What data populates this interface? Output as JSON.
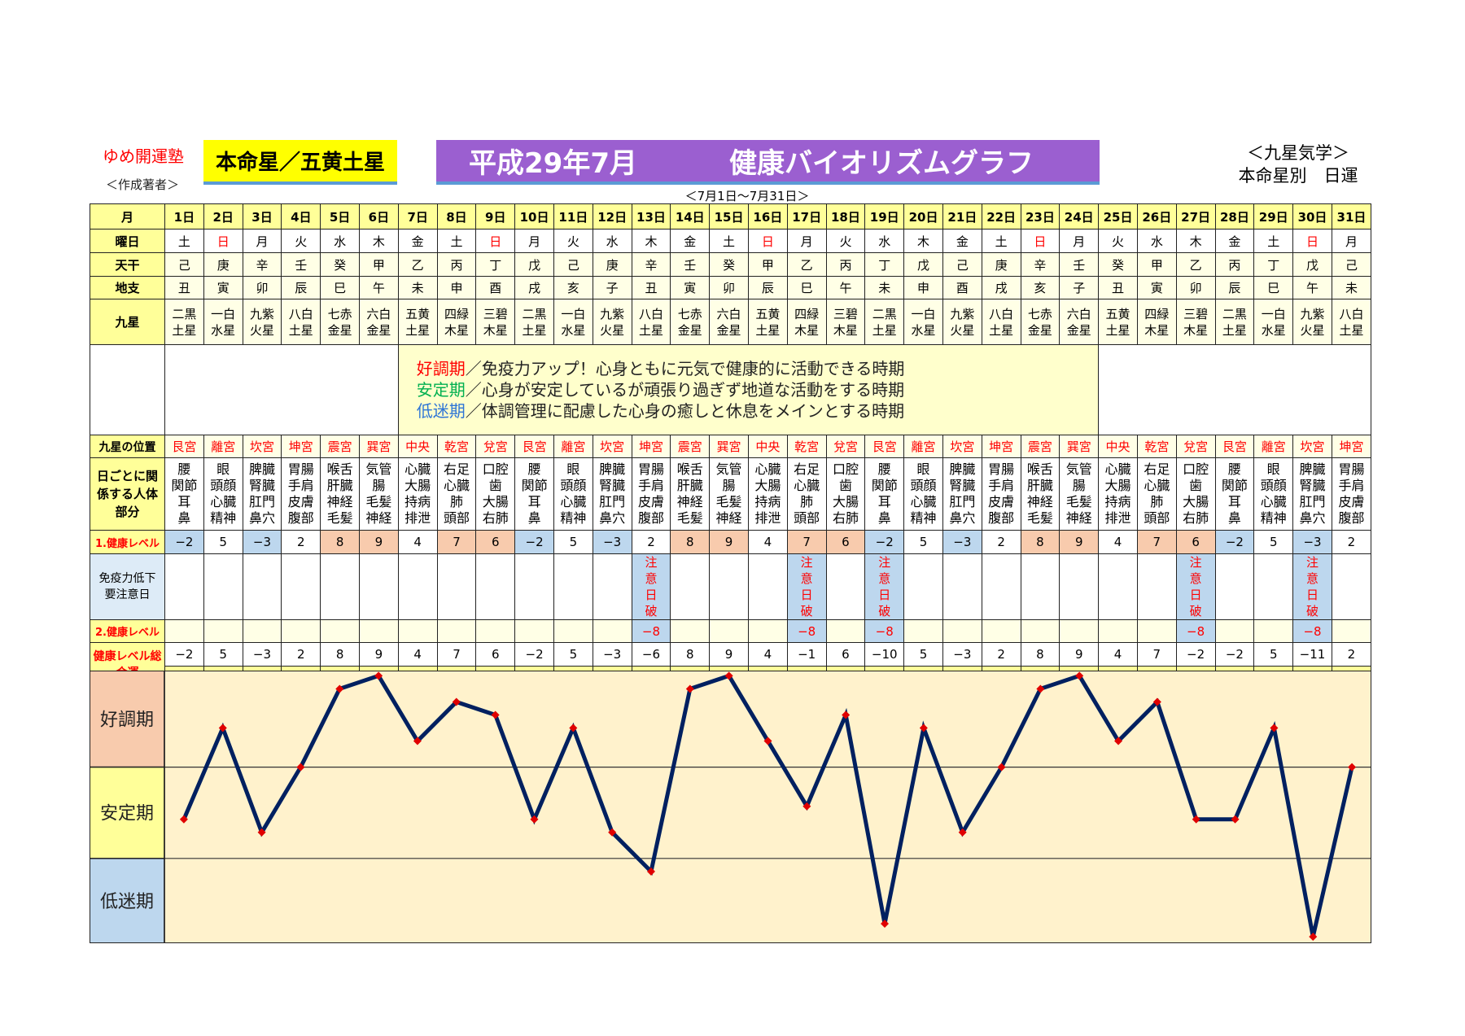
{
  "header": {
    "org": "ゆめ開運塾",
    "author": "＜作成著者＞",
    "honmei": "本命星／五黄土星",
    "title_month": "平成29年7月",
    "title_main": "健康バイオリズムグラフ",
    "right_line1": "＜九星気学＞",
    "right_line2": "本命星別　日運",
    "range": "＜7月1日～7月31日＞"
  },
  "colors": {
    "good": "#f8cbad",
    "stable": "#ffff99",
    "low": "#bdd7ee",
    "line": "#002060",
    "marker": "#e00000",
    "chart_bg": "#fff2cc",
    "title_bg": "#9b5fd0",
    "honmei_bg": "#ffff00"
  },
  "labels": {
    "month": "月",
    "weekday": "曜日",
    "tenkan": "天干",
    "chishi": "地支",
    "kyusei": "九星",
    "position": "九星の位置",
    "body": "日ごとに関係する人体部分",
    "level1": "1.健康レベル",
    "notice": "免疫力低下要注意日",
    "level2": "2.健康レベル",
    "total": "健康レベル総合運"
  },
  "legend": [
    {
      "term": "好調期",
      "color": "#ff0000",
      "text": "／免疫力アップ！心身ともに元気で健康的に活動できる時期"
    },
    {
      "term": "安定期",
      "color": "#00b050",
      "text": "／心身が安定しているが頑張り過ぎず地道な活動をする時期"
    },
    {
      "term": "低迷期",
      "color": "#2e75d6",
      "text": "／体調管理に配慮した心身の癒しと休息をメインとする時期"
    }
  ],
  "days": [
    "1日",
    "2日",
    "3日",
    "4日",
    "5日",
    "6日",
    "7日",
    "8日",
    "9日",
    "10日",
    "11日",
    "12日",
    "13日",
    "14日",
    "15日",
    "16日",
    "17日",
    "18日",
    "19日",
    "20日",
    "21日",
    "22日",
    "23日",
    "24日",
    "25日",
    "26日",
    "27日",
    "28日",
    "29日",
    "30日",
    "31日"
  ],
  "weekdays": [
    "土",
    "日",
    "月",
    "火",
    "水",
    "木",
    "金",
    "土",
    "日",
    "月",
    "火",
    "水",
    "木",
    "金",
    "土",
    "日",
    "月",
    "火",
    "水",
    "木",
    "金",
    "土",
    "日",
    "月",
    "火",
    "水",
    "木",
    "金",
    "土",
    "日",
    "月"
  ],
  "tenkan": [
    "己",
    "庚",
    "辛",
    "壬",
    "癸",
    "甲",
    "乙",
    "丙",
    "丁",
    "戊",
    "己",
    "庚",
    "辛",
    "壬",
    "癸",
    "甲",
    "乙",
    "丙",
    "丁",
    "戊",
    "己",
    "庚",
    "辛",
    "壬",
    "癸",
    "甲",
    "乙",
    "丙",
    "丁",
    "戊",
    "己"
  ],
  "chishi": [
    "丑",
    "寅",
    "卯",
    "辰",
    "巳",
    "午",
    "未",
    "申",
    "酉",
    "戌",
    "亥",
    "子",
    "丑",
    "寅",
    "卯",
    "辰",
    "巳",
    "午",
    "未",
    "申",
    "酉",
    "戌",
    "亥",
    "子",
    "丑",
    "寅",
    "卯",
    "辰",
    "巳",
    "午",
    "未"
  ],
  "kyusei": [
    "二黒土星",
    "一白水星",
    "九紫火星",
    "八白土星",
    "七赤金星",
    "六白金星",
    "五黄土星",
    "四緑木星",
    "三碧木星",
    "二黒土星",
    "一白水星",
    "九紫火星",
    "八白土星",
    "七赤金星",
    "六白金星",
    "五黄土星",
    "四緑木星",
    "三碧木星",
    "二黒土星",
    "一白水星",
    "九紫火星",
    "八白土星",
    "七赤金星",
    "六白金星",
    "五黄土星",
    "四緑木星",
    "三碧木星",
    "二黒土星",
    "一白水星",
    "九紫火星",
    "八白土星"
  ],
  "positions": [
    "艮宮",
    "離宮",
    "坎宮",
    "坤宮",
    "震宮",
    "巽宮",
    "中央",
    "乾宮",
    "兌宮",
    "艮宮",
    "離宮",
    "坎宮",
    "坤宮",
    "震宮",
    "巽宮",
    "中央",
    "乾宮",
    "兌宮",
    "艮宮",
    "離宮",
    "坎宮",
    "坤宮",
    "震宮",
    "巽宮",
    "中央",
    "乾宮",
    "兌宮",
    "艮宮",
    "離宮",
    "坎宮",
    "坤宮"
  ],
  "body_parts": [
    [
      "腰",
      "関節",
      "耳",
      "鼻"
    ],
    [
      "眼",
      "頭顔",
      "心臓",
      "精神"
    ],
    [
      "脾臓",
      "腎臓",
      "肛門",
      "鼻穴"
    ],
    [
      "胃腸",
      "手肩",
      "皮膚",
      "腹部"
    ],
    [
      "喉舌",
      "肝臓",
      "神経",
      "毛髪"
    ],
    [
      "気管",
      "腸",
      "毛髪",
      "神経"
    ],
    [
      "心臓",
      "大腸",
      "持病",
      "排泄"
    ],
    [
      "右足",
      "心臓",
      "肺",
      "頭部"
    ],
    [
      "口腔",
      "歯",
      "大腸",
      "右肺"
    ],
    [
      "腰",
      "関節",
      "耳",
      "鼻"
    ],
    [
      "眼",
      "頭顔",
      "心臓",
      "精神"
    ],
    [
      "脾臓",
      "腎臓",
      "肛門",
      "鼻穴"
    ],
    [
      "胃腸",
      "手肩",
      "皮膚",
      "腹部"
    ],
    [
      "喉舌",
      "肝臓",
      "神経",
      "毛髪"
    ],
    [
      "気管",
      "腸",
      "毛髪",
      "神経"
    ],
    [
      "心臓",
      "大腸",
      "持病",
      "排泄"
    ],
    [
      "右足",
      "心臓",
      "肺",
      "頭部"
    ],
    [
      "口腔",
      "歯",
      "大腸",
      "右肺"
    ],
    [
      "腰",
      "関節",
      "耳",
      "鼻"
    ],
    [
      "眼",
      "頭顔",
      "心臓",
      "精神"
    ],
    [
      "脾臓",
      "腎臓",
      "肛門",
      "鼻穴"
    ],
    [
      "胃腸",
      "手肩",
      "皮膚",
      "腹部"
    ],
    [
      "喉舌",
      "肝臓",
      "神経",
      "毛髪"
    ],
    [
      "気管",
      "腸",
      "毛髪",
      "神経"
    ],
    [
      "心臓",
      "大腸",
      "持病",
      "排泄"
    ],
    [
      "右足",
      "心臓",
      "肺",
      "頭部"
    ],
    [
      "口腔",
      "歯",
      "大腸",
      "右肺"
    ],
    [
      "腰",
      "関節",
      "耳",
      "鼻"
    ],
    [
      "眼",
      "頭顔",
      "心臓",
      "精神"
    ],
    [
      "脾臓",
      "腎臓",
      "肛門",
      "鼻穴"
    ],
    [
      "胃腸",
      "手肩",
      "皮膚",
      "腹部"
    ]
  ],
  "level1": [
    -2,
    5,
    -3,
    2,
    8,
    9,
    4,
    7,
    6,
    -2,
    5,
    -3,
    2,
    8,
    9,
    4,
    7,
    6,
    -2,
    5,
    -3,
    2,
    8,
    9,
    4,
    7,
    6,
    -2,
    5,
    -3,
    2
  ],
  "notice": [
    "",
    "",
    "",
    "",
    "",
    "",
    "",
    "",
    "",
    "",
    "",
    "",
    "注意日破",
    "",
    "",
    "",
    "注意日破",
    "",
    "注意日破",
    "",
    "",
    "",
    "",
    "",
    "",
    "",
    "注意日破",
    "",
    "",
    "注意日破",
    ""
  ],
  "level2": [
    null,
    null,
    null,
    null,
    null,
    null,
    null,
    null,
    null,
    null,
    null,
    null,
    -8,
    null,
    null,
    null,
    -8,
    null,
    -8,
    null,
    null,
    null,
    null,
    null,
    null,
    null,
    -8,
    null,
    null,
    -8,
    null
  ],
  "chart_data": {
    "type": "line",
    "title": "健康バイオリズムグラフ",
    "categories": [
      "1日",
      "2日",
      "3日",
      "4日",
      "5日",
      "6日",
      "7日",
      "8日",
      "9日",
      "10日",
      "11日",
      "12日",
      "13日",
      "14日",
      "15日",
      "16日",
      "17日",
      "18日",
      "19日",
      "20日",
      "21日",
      "22日",
      "23日",
      "24日",
      "25日",
      "26日",
      "27日",
      "28日",
      "29日",
      "30日",
      "31日"
    ],
    "values": [
      -2,
      5,
      -3,
      2,
      8,
      9,
      4,
      7,
      6,
      -2,
      5,
      -3,
      -6,
      8,
      9,
      4,
      -1,
      6,
      -10,
      5,
      -3,
      2,
      8,
      9,
      4,
      7,
      -2,
      -2,
      5,
      -11,
      2
    ],
    "ylim": [
      -11.5,
      9.4
    ],
    "bands": [
      {
        "label": "好調期",
        "from": 2,
        "to": 9.4
      },
      {
        "label": "安定期",
        "from": -5,
        "to": 2
      },
      {
        "label": "低迷期",
        "from": -11.5,
        "to": -5
      }
    ],
    "grid": false,
    "legend": "none"
  }
}
